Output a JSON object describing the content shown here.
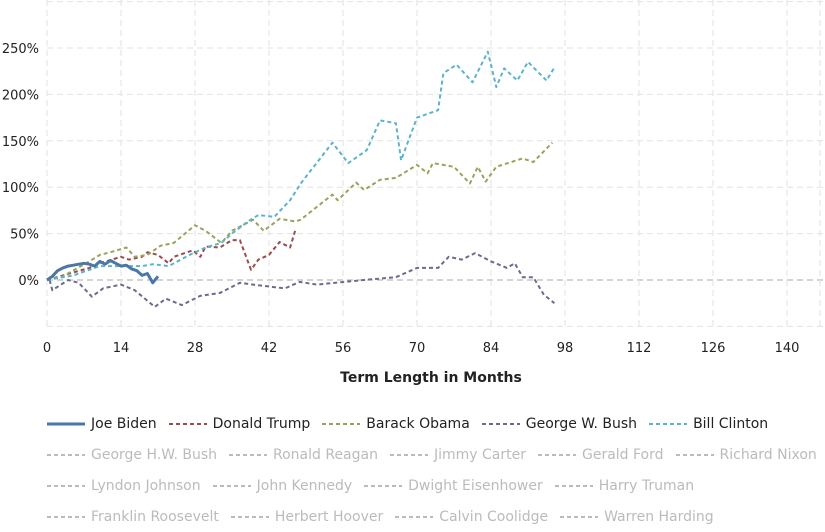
{
  "chart_data": {
    "type": "line",
    "title": "",
    "xlabel": "Term Length in Months",
    "ylabel": "",
    "xlim": [
      0,
      144
    ],
    "ylim": [
      -50,
      280
    ],
    "x_ticks": [
      0,
      14,
      28,
      42,
      56,
      70,
      84,
      98,
      112,
      126,
      140
    ],
    "x_tick_labels": [
      "0",
      "14",
      "28",
      "42",
      "56",
      "70",
      "84",
      "98",
      "112",
      "126",
      "140"
    ],
    "y_ticks": [
      0,
      50,
      100,
      150,
      200,
      250
    ],
    "y_tick_labels": [
      "0%",
      "50%",
      "100%",
      "150%",
      "200%",
      "250%"
    ],
    "grid": true,
    "legend_position": "bottom",
    "series": [
      {
        "name": "Joe Biden",
        "color": "#4a76a8",
        "style": "solid",
        "active": true,
        "x": [
          0,
          1,
          2,
          3,
          4,
          5,
          6,
          7,
          8,
          9,
          10,
          11,
          12,
          13,
          14,
          15,
          16,
          17,
          18,
          19,
          20,
          21
        ],
        "y": [
          0,
          4,
          10,
          13,
          15,
          16,
          17,
          18,
          17,
          15,
          20,
          17,
          21,
          18,
          15,
          16,
          12,
          10,
          5,
          7,
          -3,
          4
        ]
      },
      {
        "name": "Donald Trump",
        "color": "#9b4a4a",
        "style": "dashed",
        "active": true,
        "x": [
          0,
          3,
          8,
          10,
          14,
          15.5,
          18,
          19,
          21,
          23,
          24,
          27.6,
          29,
          30,
          32.7,
          35,
          36.5,
          38.6,
          40,
          42,
          44,
          46,
          47
        ],
        "y": [
          0,
          5,
          13,
          18,
          25,
          22,
          25,
          30,
          27,
          18,
          25,
          32,
          25,
          36,
          35,
          43,
          43,
          11,
          22,
          27,
          41,
          35,
          54
        ]
      },
      {
        "name": "Barack Obama",
        "color": "#9aa35a",
        "style": "dashed",
        "active": true,
        "x": [
          0,
          3,
          8,
          10,
          12,
          15,
          16.6,
          19,
          21.5,
          24,
          28,
          30,
          33,
          35,
          39,
          41,
          44,
          47,
          48,
          54,
          55,
          58.5,
          60,
          63,
          66,
          70,
          72,
          73,
          77,
          80,
          81.5,
          83,
          85,
          90,
          92,
          95.6
        ],
        "y": [
          0,
          4,
          20,
          27,
          30,
          35,
          25,
          27,
          37,
          40,
          59,
          53,
          40,
          53,
          65,
          53,
          66,
          63,
          65,
          92,
          86,
          105,
          97,
          108,
          110,
          124,
          115,
          126,
          122,
          104,
          122,
          106,
          122,
          131,
          127,
          148
        ]
      },
      {
        "name": "George W. Bush",
        "color": "#6b6b8e",
        "style": "dashed",
        "active": true,
        "x": [
          0.5,
          1,
          4,
          6,
          8.5,
          10.6,
          14,
          16.6,
          20.4,
          22.5,
          25.5,
          29,
          32.7,
          36.5,
          39,
          42,
          45,
          47.8,
          51,
          60,
          66,
          70,
          74,
          76,
          78.5,
          81,
          84,
          87,
          88.5,
          90,
          92,
          94,
          96
        ],
        "y": [
          0,
          -11,
          0,
          -3,
          -18,
          -9,
          -5,
          -11,
          -29,
          -20,
          -27,
          -17,
          -14,
          -3,
          -5,
          -7,
          -9,
          -2,
          -5,
          0,
          3,
          13,
          13,
          25,
          22,
          29,
          20,
          13,
          18,
          3,
          3,
          -16,
          -25
        ]
      },
      {
        "name": "Bill Clinton",
        "color": "#5ab4cc",
        "style": "dashed",
        "active": true,
        "x": [
          0,
          5,
          10,
          15,
          18,
          20,
          23,
          27,
          30,
          33,
          35,
          38,
          40,
          43,
          46,
          48,
          54,
          57,
          60.5,
          63,
          66,
          67,
          70,
          74,
          75,
          77.5,
          80.5,
          83.4,
          85,
          86.5,
          89,
          91,
          94.5,
          96
        ],
        "y": [
          0,
          5,
          15,
          15,
          15,
          17,
          15,
          27,
          35,
          40,
          50,
          63,
          70,
          68,
          86,
          104,
          148,
          126,
          140,
          172,
          169,
          129,
          175,
          183,
          223,
          232,
          213,
          246,
          208,
          228,
          215,
          235,
          215,
          229
        ]
      },
      {
        "name": "George H.W. Bush",
        "active": false
      },
      {
        "name": "Ronald Reagan",
        "active": false
      },
      {
        "name": "Jimmy Carter",
        "active": false
      },
      {
        "name": "Gerald Ford",
        "active": false
      },
      {
        "name": "Richard Nixon",
        "active": false
      },
      {
        "name": "Lyndon Johnson",
        "active": false
      },
      {
        "name": "John Kennedy",
        "active": false
      },
      {
        "name": "Dwight Eisenhower",
        "active": false
      },
      {
        "name": "Harry Truman",
        "active": false
      },
      {
        "name": "Franklin Roosevelt",
        "active": false
      },
      {
        "name": "Herbert Hoover",
        "active": false
      },
      {
        "name": "Calvin Coolidge",
        "active": false
      },
      {
        "name": "Warren Harding",
        "active": false
      }
    ],
    "legend_rows": [
      [
        0,
        1,
        2,
        3,
        4
      ],
      [
        5,
        6,
        7,
        8,
        9
      ],
      [
        10,
        11,
        12,
        13
      ],
      [
        14,
        15,
        16,
        17
      ]
    ]
  }
}
